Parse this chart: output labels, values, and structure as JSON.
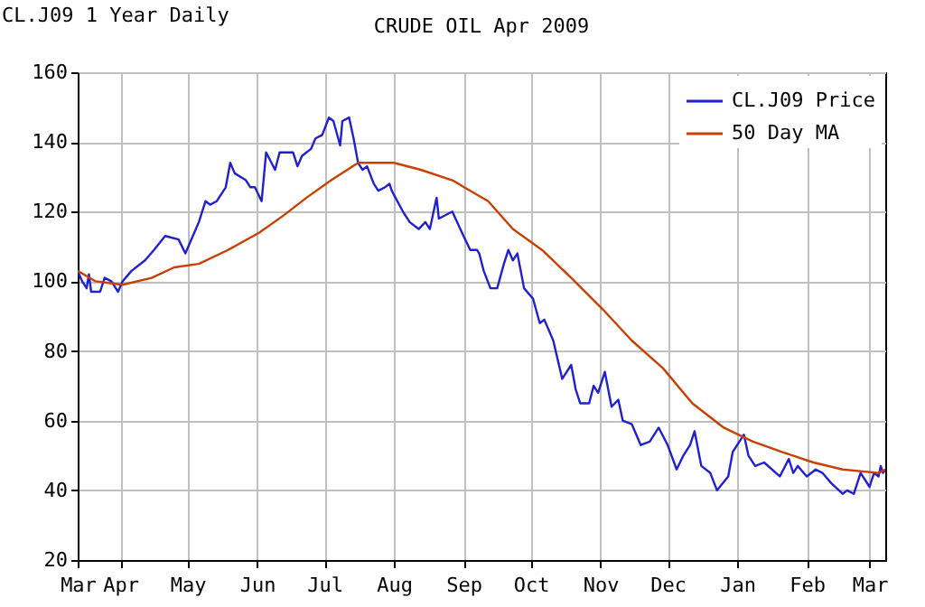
{
  "chart_data": {
    "type": "line",
    "title": "CRUDE OIL Apr 2009",
    "annotations": [
      "CL.J09 1 Year Daily"
    ],
    "xlim": [
      "2008-03-13",
      "2009-03-08"
    ],
    "xticks": [
      {
        "value": "2008-03-13",
        "label": "Mar"
      },
      {
        "value": "2008-04-01",
        "label": "Apr"
      },
      {
        "value": "2008-05-01",
        "label": "May"
      },
      {
        "value": "2008-06-01",
        "label": "Jun"
      },
      {
        "value": "2008-07-01",
        "label": "Jul"
      },
      {
        "value": "2008-08-01",
        "label": "Aug"
      },
      {
        "value": "2008-09-01",
        "label": "Sep"
      },
      {
        "value": "2008-10-01",
        "label": "Oct"
      },
      {
        "value": "2008-11-01",
        "label": "Nov"
      },
      {
        "value": "2008-12-01",
        "label": "Dec"
      },
      {
        "value": "2009-01-01",
        "label": "Jan"
      },
      {
        "value": "2009-02-01",
        "label": "Feb"
      },
      {
        "value": "2009-03-01",
        "label": "Mar"
      }
    ],
    "ylim": [
      20,
      160
    ],
    "yticks": [
      20,
      40,
      60,
      80,
      100,
      120,
      140,
      160
    ],
    "grid": true,
    "legend": "top right",
    "series": [
      {
        "name": "CL.J09 Price",
        "color": "#2020d0",
        "x": [
          "2008-03-13",
          "2008-03-15",
          "2008-03-17",
          "2008-03-18",
          "2008-03-19",
          "2008-03-23",
          "2008-03-25",
          "2008-03-28",
          "2008-03-31",
          "2008-04-02",
          "2008-04-06",
          "2008-04-12",
          "2008-04-16",
          "2008-04-21",
          "2008-04-27",
          "2008-04-30",
          "2008-05-02",
          "2008-05-06",
          "2008-05-09",
          "2008-05-11",
          "2008-05-14",
          "2008-05-18",
          "2008-05-20",
          "2008-05-22",
          "2008-05-27",
          "2008-05-29",
          "2008-05-31",
          "2008-06-03",
          "2008-06-05",
          "2008-06-09",
          "2008-06-11",
          "2008-06-17",
          "2008-06-19",
          "2008-06-21",
          "2008-06-25",
          "2008-06-27",
          "2008-06-30",
          "2008-07-03",
          "2008-07-05",
          "2008-07-08",
          "2008-07-09",
          "2008-07-12",
          "2008-07-14",
          "2008-07-16",
          "2008-07-18",
          "2008-07-20",
          "2008-07-23",
          "2008-07-25",
          "2008-07-28",
          "2008-07-30",
          "2008-07-31",
          "2008-08-05",
          "2008-08-08",
          "2008-08-12",
          "2008-08-15",
          "2008-08-17",
          "2008-08-20",
          "2008-08-21",
          "2008-08-27",
          "2008-09-01",
          "2008-09-04",
          "2008-09-07",
          "2008-09-08",
          "2008-09-10",
          "2008-09-13",
          "2008-09-16",
          "2008-09-19",
          "2008-09-21",
          "2008-09-23",
          "2008-09-25",
          "2008-09-28",
          "2008-10-02",
          "2008-10-05",
          "2008-10-07",
          "2008-10-11",
          "2008-10-15",
          "2008-10-19",
          "2008-10-21",
          "2008-10-23",
          "2008-10-27",
          "2008-10-29",
          "2008-10-31",
          "2008-11-03",
          "2008-11-06",
          "2008-11-09",
          "2008-11-11",
          "2008-11-15",
          "2008-11-19",
          "2008-11-23",
          "2008-11-27",
          "2008-12-01",
          "2008-12-05",
          "2008-12-08",
          "2008-12-11",
          "2008-12-13",
          "2008-12-16",
          "2008-12-20",
          "2008-12-23",
          "2008-12-28",
          "2008-12-30",
          "2009-01-04",
          "2009-01-06",
          "2009-01-09",
          "2009-01-13",
          "2009-01-20",
          "2009-01-24",
          "2009-01-26",
          "2009-01-28",
          "2009-02-01",
          "2009-02-05",
          "2009-02-08",
          "2009-02-12",
          "2009-02-17",
          "2009-02-19",
          "2009-02-22",
          "2009-02-25",
          "2009-03-01",
          "2009-03-03",
          "2009-03-05",
          "2009-03-06",
          "2009-03-07",
          "2009-03-08"
        ],
        "values": [
          103,
          100,
          98,
          102,
          97,
          97,
          101,
          100,
          97,
          100,
          103,
          106,
          109,
          113,
          112,
          108,
          111,
          117,
          123,
          122,
          123,
          127,
          134,
          131,
          129,
          127,
          127,
          123,
          137,
          132,
          137,
          137,
          133,
          136,
          138,
          141,
          142,
          147,
          146,
          139,
          146,
          147,
          141,
          134,
          132,
          133,
          128,
          126,
          127,
          128,
          126,
          120,
          117,
          115,
          117,
          115,
          124,
          118,
          120,
          113,
          109,
          109,
          108,
          103,
          98,
          98,
          105,
          109,
          106,
          108,
          98,
          95,
          88,
          89,
          83,
          72,
          76,
          69,
          65,
          65,
          70,
          68,
          74,
          64,
          66,
          60,
          59,
          53,
          54,
          58,
          53,
          46,
          50,
          53,
          57,
          47,
          45,
          40,
          44,
          51,
          56,
          50,
          47,
          48,
          44,
          49,
          45,
          47,
          44,
          46,
          45,
          42,
          39,
          40,
          39,
          45,
          41,
          45,
          44,
          47,
          45,
          46
        ]
      },
      {
        "name": "50 Day MA",
        "color": "#c84000",
        "x": [
          "2008-03-13",
          "2008-03-21",
          "2008-04-02",
          "2008-04-15",
          "2008-04-25",
          "2008-05-06",
          "2008-05-19",
          "2008-06-02",
          "2008-06-13",
          "2008-06-23",
          "2008-07-04",
          "2008-07-16",
          "2008-07-25",
          "2008-08-01",
          "2008-08-13",
          "2008-08-27",
          "2008-09-12",
          "2008-09-23",
          "2008-10-06",
          "2008-10-19",
          "2008-11-02",
          "2008-11-15",
          "2008-11-29",
          "2008-12-12",
          "2008-12-26",
          "2009-01-08",
          "2009-01-21",
          "2009-02-04",
          "2009-02-17",
          "2009-03-05",
          "2009-03-08"
        ],
        "values": [
          103,
          100,
          99,
          101,
          104,
          105,
          109,
          114,
          119,
          124,
          129,
          134,
          134,
          134,
          132,
          129,
          123,
          115,
          109,
          101,
          92,
          83,
          75,
          65,
          58,
          54,
          51,
          48,
          46,
          45,
          46
        ]
      }
    ]
  }
}
